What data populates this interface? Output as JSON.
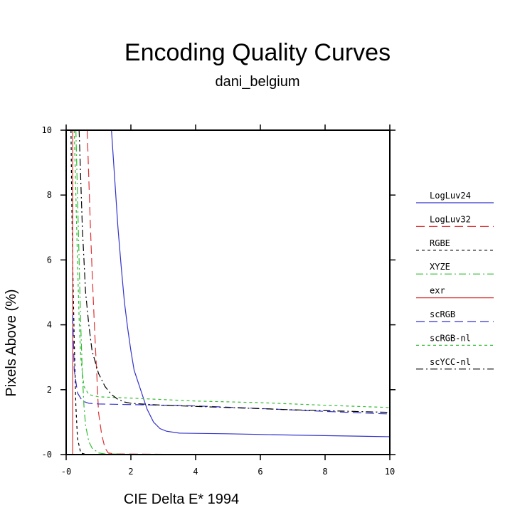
{
  "chart_data": {
    "type": "line",
    "title": "Encoding Quality Curves",
    "subtitle": "dani_belgium",
    "xlabel": "CIE Delta E* 1994",
    "ylabel": "Pixels Above (%)",
    "xlim": [
      0,
      10
    ],
    "ylim": [
      0,
      10
    ],
    "xticks": [
      0,
      2,
      4,
      6,
      8,
      10
    ],
    "yticks": [
      0,
      2,
      4,
      6,
      8,
      10
    ],
    "xtick_labels": [
      "-0",
      "2",
      "4",
      "6",
      "8",
      "10"
    ],
    "ytick_labels": [
      "-0",
      "2",
      "4",
      "6",
      "8",
      "10"
    ],
    "grid": false,
    "legend_position": "right",
    "series": [
      {
        "name": "LogLuv24",
        "color": "#3333cc",
        "dash": "solid",
        "points": [
          [
            1.4,
            10
          ],
          [
            1.5,
            8.5
          ],
          [
            1.6,
            7
          ],
          [
            1.7,
            5.8
          ],
          [
            1.8,
            4.7
          ],
          [
            1.9,
            3.9
          ],
          [
            2.0,
            3.2
          ],
          [
            2.1,
            2.6
          ],
          [
            2.3,
            2.0
          ],
          [
            2.5,
            1.4
          ],
          [
            2.7,
            1.0
          ],
          [
            2.9,
            0.8
          ],
          [
            3.1,
            0.72
          ],
          [
            3.5,
            0.66
          ],
          [
            5,
            0.64
          ],
          [
            7,
            0.6
          ],
          [
            10,
            0.55
          ]
        ]
      },
      {
        "name": "LogLuv32",
        "color": "#dd3333",
        "dash": "longdash",
        "points": [
          [
            0.65,
            10
          ],
          [
            0.7,
            8.5
          ],
          [
            0.75,
            7
          ],
          [
            0.8,
            5.7
          ],
          [
            0.85,
            4.5
          ],
          [
            0.9,
            3.4
          ],
          [
            0.95,
            2.4
          ],
          [
            1.0,
            1.3
          ],
          [
            1.1,
            0.6
          ],
          [
            1.2,
            0.2
          ],
          [
            1.3,
            0.05
          ],
          [
            1.5,
            0.02
          ],
          [
            3,
            0.01
          ],
          [
            10,
            0.01
          ]
        ]
      },
      {
        "name": "RGBE",
        "color": "#000000",
        "dash": "shortdash",
        "points": [
          [
            0.15,
            10
          ],
          [
            0.17,
            8
          ],
          [
            0.2,
            6
          ],
          [
            0.25,
            3.5
          ],
          [
            0.3,
            1.5
          ],
          [
            0.35,
            0.5
          ],
          [
            0.45,
            0.05
          ],
          [
            0.6,
            0.01
          ],
          [
            10,
            0.01
          ]
        ]
      },
      {
        "name": "XYZE",
        "color": "#33bb33",
        "dash": "dashdot",
        "points": [
          [
            0.3,
            10
          ],
          [
            0.35,
            8
          ],
          [
            0.4,
            6
          ],
          [
            0.45,
            4
          ],
          [
            0.5,
            2.5
          ],
          [
            0.55,
            1.5
          ],
          [
            0.6,
            0.9
          ],
          [
            0.7,
            0.4
          ],
          [
            0.8,
            0.2
          ],
          [
            1.0,
            0.05
          ],
          [
            1.2,
            0.02
          ],
          [
            2,
            0.01
          ],
          [
            10,
            0.01
          ]
        ]
      },
      {
        "name": "exr",
        "color": "#dd3333",
        "dash": "solid",
        "points": [
          [
            0.2,
            10
          ],
          [
            0.2,
            0
          ]
        ]
      },
      {
        "name": "scRGB",
        "color": "#3333cc",
        "dash": "longdash",
        "points": [
          [
            0.2,
            4.3
          ],
          [
            0.25,
            2.6
          ],
          [
            0.35,
            1.9
          ],
          [
            0.5,
            1.65
          ],
          [
            0.7,
            1.58
          ],
          [
            1.0,
            1.56
          ],
          [
            2,
            1.54
          ],
          [
            4,
            1.5
          ],
          [
            6,
            1.42
          ],
          [
            8,
            1.33
          ],
          [
            10,
            1.25
          ]
        ]
      },
      {
        "name": "scRGB-nl",
        "color": "#33bb33",
        "dash": "shortdash",
        "points": [
          [
            0.25,
            10
          ],
          [
            0.3,
            8
          ],
          [
            0.35,
            6
          ],
          [
            0.4,
            4.2
          ],
          [
            0.45,
            3.0
          ],
          [
            0.55,
            2.1
          ],
          [
            0.7,
            1.85
          ],
          [
            1.0,
            1.78
          ],
          [
            2,
            1.74
          ],
          [
            4,
            1.65
          ],
          [
            6,
            1.6
          ],
          [
            8,
            1.52
          ],
          [
            10,
            1.45
          ]
        ]
      },
      {
        "name": "scYCC-nl",
        "color": "#000000",
        "dash": "dashdot",
        "points": [
          [
            0.4,
            10
          ],
          [
            0.45,
            8.5
          ],
          [
            0.5,
            7
          ],
          [
            0.55,
            6
          ],
          [
            0.6,
            5
          ],
          [
            0.7,
            4
          ],
          [
            0.8,
            3.2
          ],
          [
            1.0,
            2.5
          ],
          [
            1.2,
            2.1
          ],
          [
            1.4,
            1.85
          ],
          [
            1.6,
            1.7
          ],
          [
            1.8,
            1.62
          ],
          [
            2.0,
            1.58
          ],
          [
            3,
            1.52
          ],
          [
            5,
            1.45
          ],
          [
            7,
            1.38
          ],
          [
            10,
            1.3
          ]
        ]
      }
    ]
  }
}
